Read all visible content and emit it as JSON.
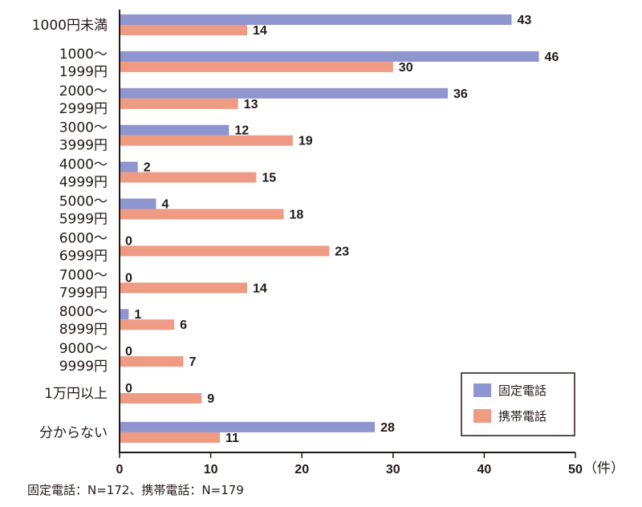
{
  "chart_data": {
    "type": "bar",
    "orientation": "horizontal",
    "categories": [
      [
        "1000円未満"
      ],
      [
        "1000～",
        "1999円"
      ],
      [
        "2000～",
        "2999円"
      ],
      [
        "3000～",
        "3999円"
      ],
      [
        "4000～",
        "4999円"
      ],
      [
        "5000～",
        "5999円"
      ],
      [
        "6000～",
        "6999円"
      ],
      [
        "7000～",
        "7999円"
      ],
      [
        "8000～",
        "8999円"
      ],
      [
        "9000～",
        "9999円"
      ],
      [
        "1万円以上"
      ],
      [
        "分からない"
      ]
    ],
    "series": [
      {
        "name": "固定電話",
        "color": "#8e95cf",
        "values": [
          43,
          46,
          36,
          12,
          2,
          4,
          0,
          0,
          1,
          0,
          0,
          28
        ]
      },
      {
        "name": "携帯電話",
        "color": "#ef9a82",
        "values": [
          14,
          30,
          13,
          19,
          15,
          18,
          23,
          14,
          6,
          7,
          9,
          11
        ]
      }
    ],
    "xlim": [
      0,
      50
    ],
    "xticks": [
      0,
      10,
      20,
      30,
      40,
      50
    ],
    "xunit": "（件）",
    "legend_position": "bottom-right",
    "grid": false,
    "footnote": "固定電話：N=172、携帯電話：N=179"
  }
}
